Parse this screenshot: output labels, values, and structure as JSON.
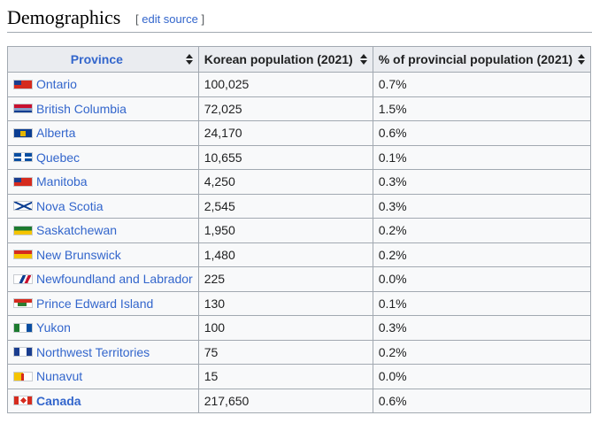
{
  "section": {
    "title": "Demographics",
    "edit_open": "[ ",
    "edit_label": "edit source",
    "edit_close": " ]"
  },
  "table": {
    "headers": {
      "province": "Province",
      "population": "Korean population (2021)",
      "percent": "% of provincial population (2021)"
    },
    "rows": [
      {
        "province": "Ontario",
        "flag": "ontario-flag",
        "population": "100,025",
        "percent": "0.7%"
      },
      {
        "province": "British Columbia",
        "flag": "british-columbia-flag",
        "population": "72,025",
        "percent": "1.5%"
      },
      {
        "province": "Alberta",
        "flag": "alberta-flag",
        "population": "24,170",
        "percent": "0.6%"
      },
      {
        "province": "Quebec",
        "flag": "quebec-flag",
        "population": "10,655",
        "percent": "0.1%"
      },
      {
        "province": "Manitoba",
        "flag": "manitoba-flag",
        "population": "4,250",
        "percent": "0.3%"
      },
      {
        "province": "Nova Scotia",
        "flag": "nova-scotia-flag",
        "population": "2,545",
        "percent": "0.3%"
      },
      {
        "province": "Saskatchewan",
        "flag": "saskatchewan-flag",
        "population": "1,950",
        "percent": "0.2%"
      },
      {
        "province": "New Brunswick",
        "flag": "new-brunswick-flag",
        "population": "1,480",
        "percent": "0.2%"
      },
      {
        "province": "Newfoundland and Labrador",
        "flag": "newfoundland-flag",
        "population": "225",
        "percent": "0.0%"
      },
      {
        "province": "Prince Edward Island",
        "flag": "pei-flag",
        "population": "130",
        "percent": "0.1%"
      },
      {
        "province": "Yukon",
        "flag": "yukon-flag",
        "population": "100",
        "percent": "0.3%"
      },
      {
        "province": "Northwest Territories",
        "flag": "nwt-flag",
        "population": "75",
        "percent": "0.2%"
      },
      {
        "province": "Nunavut",
        "flag": "nunavut-flag",
        "population": "15",
        "percent": "0.0%"
      }
    ],
    "total": {
      "province": "Canada",
      "flag": "canada-flag",
      "population": "217,650",
      "percent": "0.6%"
    }
  }
}
